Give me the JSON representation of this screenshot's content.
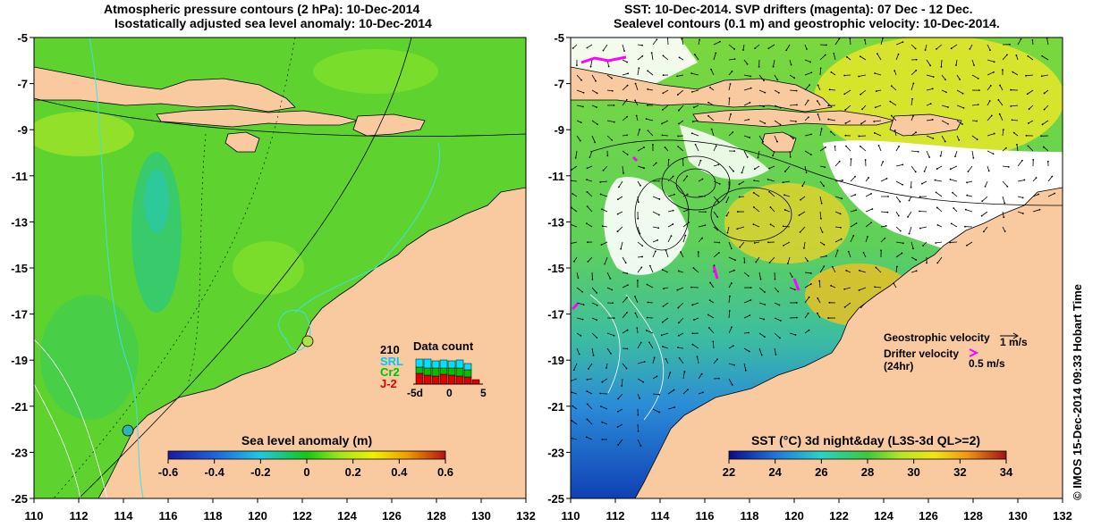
{
  "left_map": {
    "title_line1": "Atmospheric pressure contours (2 hPa): 10-Dec-2014",
    "title_line2": "Isostatically adjusted sea level anomaly: 10-Dec-2014",
    "x_ticks": [
      "110",
      "112",
      "114",
      "116",
      "118",
      "120",
      "122",
      "124",
      "126",
      "128",
      "130",
      "132"
    ],
    "y_ticks": [
      "-5",
      "-7",
      "-9",
      "-11",
      "-13",
      "-15",
      "-17",
      "-19",
      "-21",
      "-23",
      "-25"
    ],
    "colorbar_title": "Sea level anomaly (m)",
    "colorbar_ticks": [
      "-0.6",
      "-0.4",
      "-0.2",
      "0",
      "0.2",
      "0.4",
      "0.6"
    ],
    "inset": {
      "count_label": "210",
      "title": "Data count",
      "missions": [
        "SRL",
        "Cr2",
        "J-2"
      ],
      "axis_ticks": [
        "-5d",
        "0",
        "5"
      ],
      "colors": {
        "SRL": "#00e0ff",
        "Cr2": "#00c000",
        "J-2": "#e00000"
      }
    }
  },
  "right_map": {
    "title_line1": "SST: 10-Dec-2014. SVP drifters (magenta): 07 Dec - 12 Dec.",
    "title_line2": "Sealevel contours (0.1 m) and geostrophic velocity: 10-Dec-2014.",
    "x_ticks": [
      "110",
      "112",
      "114",
      "116",
      "118",
      "120",
      "122",
      "124",
      "126",
      "128",
      "130",
      "132"
    ],
    "y_ticks": [
      "-5",
      "-7",
      "-9",
      "-11",
      "-13",
      "-15",
      "-17",
      "-19",
      "-21",
      "-23",
      "-25"
    ],
    "colorbar_title": "SST (°C) 3d night&day (L3S-3d QL>=2)",
    "colorbar_ticks": [
      "22",
      "24",
      "26",
      "28",
      "30",
      "32",
      "34"
    ],
    "legend": {
      "geostrophic_label": "Geostrophic velocity",
      "geostrophic_scale": "1 m/s",
      "drifter_label": "Drifter velocity",
      "drifter_sub": "(24hr)",
      "drifter_scale": "0.5 m/s"
    }
  },
  "credit": "© IMOS 15-Dec-2014 09:33 Hobart Time",
  "colors": {
    "land": "#f9c9a0",
    "sea_green": "#5dd62c",
    "drifter": "#ff00ff",
    "contour_cyan": "#40e0e0"
  }
}
